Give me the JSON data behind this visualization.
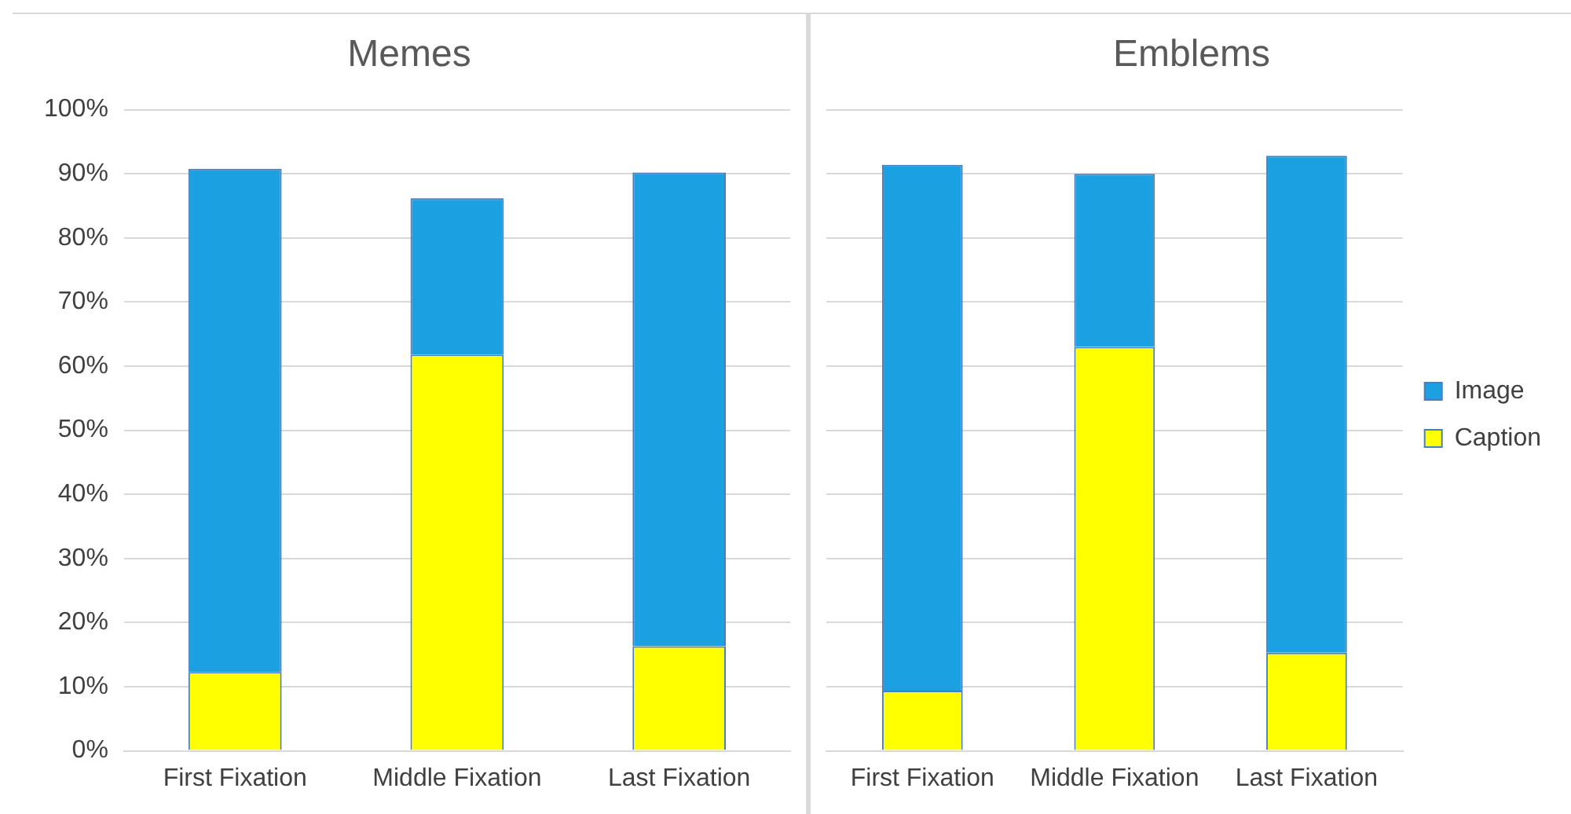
{
  "chart_data": [
    {
      "type": "bar",
      "title": "Memes",
      "stacked": true,
      "categories": [
        "First Fixation",
        "Middle Fixation",
        "Last Fixation"
      ],
      "series": [
        {
          "color": "#ffff00",
          "values": [
            12.3,
            61.8,
            16.3
          ]
        },
        {
          "color": "#1ba1e2",
          "values": [
            78.5,
            24.4,
            73.9
          ]
        }
      ],
      "ylim": [
        0,
        100
      ],
      "yticks": [
        {
          "value": 0,
          "label": "0%"
        },
        {
          "value": 10,
          "label": "10%"
        },
        {
          "value": 20,
          "label": "20%"
        },
        {
          "value": 30,
          "label": "30%"
        },
        {
          "value": 40,
          "label": "40%"
        },
        {
          "value": 50,
          "label": "50%"
        },
        {
          "value": 60,
          "label": "60%"
        },
        {
          "value": 70,
          "label": "70%"
        },
        {
          "value": 80,
          "label": "80%"
        },
        {
          "value": 90,
          "label": "90%"
        },
        {
          "value": 100,
          "label": "100%"
        }
      ],
      "grid": "y",
      "legend": false
    },
    {
      "type": "bar",
      "title": "Emblems",
      "stacked": true,
      "categories": [
        "First Fixation",
        "Middle Fixation",
        "Last Fixation"
      ],
      "series": [
        {
          "name": "Caption",
          "color": "#ffff00",
          "values": [
            9.4,
            63,
            15.3
          ]
        },
        {
          "name": "Image",
          "color": "#1ba1e2",
          "values": [
            82,
            27,
            77.5
          ]
        }
      ],
      "ylim": [
        0,
        100
      ],
      "yticks": [
        {
          "value": 0,
          "label": null
        },
        {
          "value": 10,
          "label": null
        },
        {
          "value": 20,
          "label": null
        },
        {
          "value": 30,
          "label": null
        },
        {
          "value": 40,
          "label": null
        },
        {
          "value": 50,
          "label": null
        },
        {
          "value": 60,
          "label": null
        },
        {
          "value": 70,
          "label": null
        },
        {
          "value": 80,
          "label": null
        },
        {
          "value": 90,
          "label": null
        },
        {
          "value": 100,
          "label": null
        }
      ],
      "tick_labels": "x",
      "grid": "y",
      "legend": "right"
    }
  ]
}
